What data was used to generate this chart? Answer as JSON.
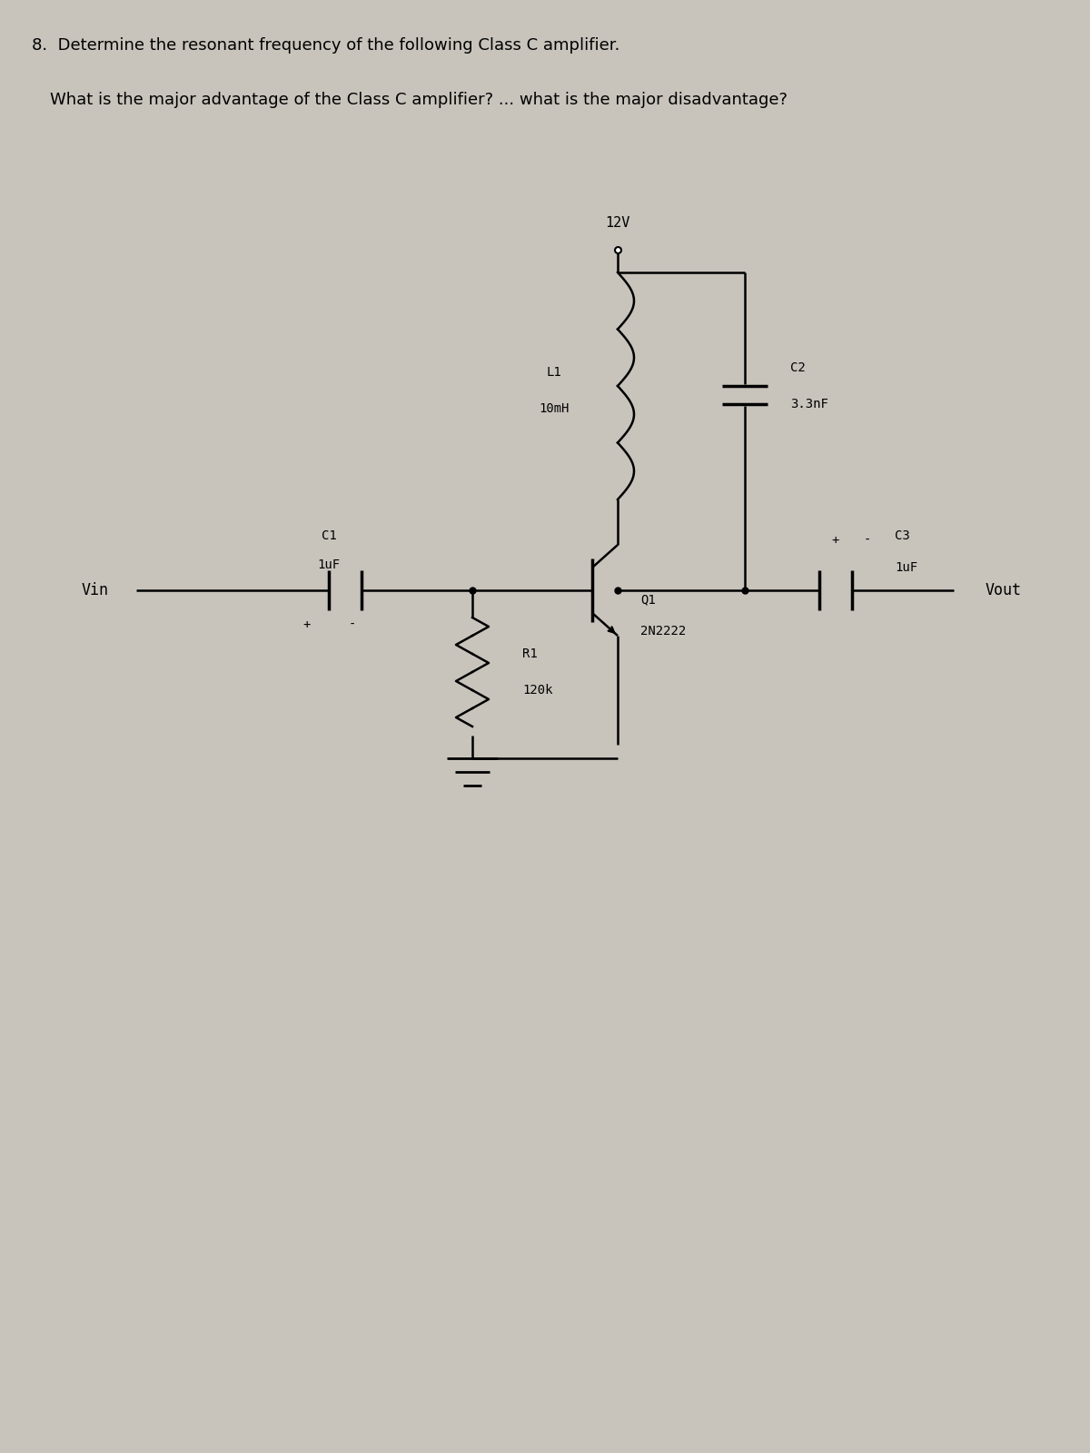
{
  "title_line1": "8.  Determine the resonant frequency of the following Class C amplifier.",
  "title_line2": "What is the major advantage of the Class C amplifier? ... what is the major disadvantage?",
  "bg_color": "#c8c4bc",
  "line_color": "#000000",
  "text_color": "#000000",
  "components": {
    "Vin_label": "Vin",
    "C1_label": "C1",
    "C1_value": "1uF",
    "C1_plus": "+",
    "C1_minus": "-",
    "L1_label": "L1",
    "L1_value": "10mH",
    "C2_label": "C2",
    "C2_value": "3.3nF",
    "R1_label": "R1",
    "R1_value": "120k",
    "VCC_label": "12V",
    "Q1_label": "Q1",
    "Q1_value": "2N2222",
    "C3_label": "C3",
    "C3_value": "1uF",
    "C3_plus": "+",
    "C3_minus": "-",
    "Vout_label": "Vout"
  }
}
